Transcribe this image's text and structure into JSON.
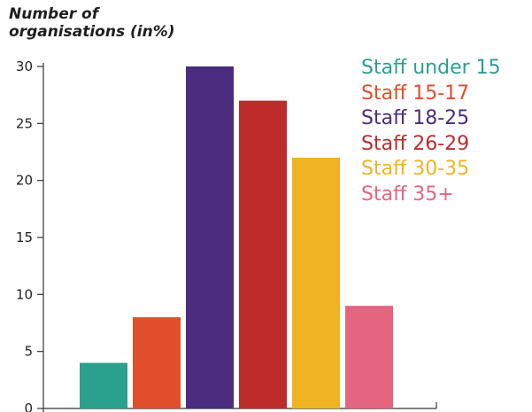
{
  "chart_data": {
    "type": "bar",
    "ylabel_lines": [
      "Number of",
      "organisations (in%)"
    ],
    "xlabel": "",
    "categories": [
      "Staff under 15",
      "Staff 15-17",
      "Staff 18-25",
      "Staff 26-29",
      "Staff 30-35",
      "Staff 35+"
    ],
    "values": [
      4,
      8,
      30,
      27,
      22,
      9
    ],
    "colors": [
      "#2aa08f",
      "#e04e2b",
      "#4b2c7e",
      "#bd2b2b",
      "#f0b323",
      "#e5647f"
    ],
    "ylim": [
      0,
      30
    ],
    "yticks": [
      0,
      5,
      10,
      15,
      20,
      25,
      30
    ],
    "grid": false,
    "legend_position": "top-right"
  }
}
